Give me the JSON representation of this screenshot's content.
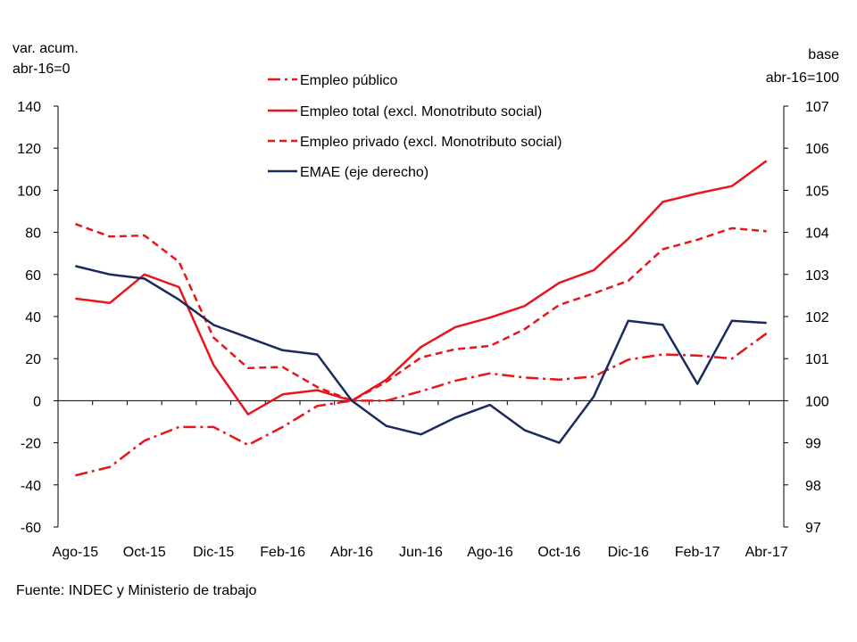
{
  "chart_data": {
    "type": "line",
    "left_axis_label": [
      "var. acum.",
      "abr-16=0"
    ],
    "right_axis_label": [
      "base",
      "abr-16=100"
    ],
    "categories": [
      "Ago-15",
      "Sep-15",
      "Oct-15",
      "Nov-15",
      "Dic-15",
      "Ene-16",
      "Feb-16",
      "Mar-16",
      "Abr-16",
      "May-16",
      "Jun-16",
      "Jul-16",
      "Ago-16",
      "Sep-16",
      "Oct-16",
      "Nov-16",
      "Dic-16",
      "Ene-17",
      "Feb-17",
      "Mar-17",
      "Abr-17"
    ],
    "tick_labels": [
      "Ago-15",
      "Oct-15",
      "Dic-15",
      "Feb-16",
      "Abr-16",
      "Jun-16",
      "Ago-16",
      "Oct-16",
      "Dic-16",
      "Feb-17",
      "Abr-17"
    ],
    "ylim_left": [
      -60,
      140
    ],
    "yticks_left": [
      -60,
      -40,
      -20,
      0,
      20,
      40,
      60,
      80,
      100,
      120,
      140
    ],
    "ylim_right": [
      97,
      107
    ],
    "yticks_right": [
      97,
      98,
      99,
      100,
      101,
      102,
      103,
      104,
      105,
      106,
      107
    ],
    "series": [
      {
        "name": "Empleo público",
        "axis": "left",
        "color": "#e8151b",
        "style": "dashdot",
        "values": [
          -35.5,
          -31.5,
          -19,
          -12.5,
          -12.5,
          -21,
          -12.5,
          -2.5,
          0,
          0,
          4.5,
          9.5,
          13,
          11,
          10,
          11.5,
          19.5,
          22,
          21.5,
          20,
          32
        ]
      },
      {
        "name": "Empleo total (excl. Monotributo social)",
        "axis": "left",
        "color": "#e8151b",
        "style": "solid",
        "values": [
          48.5,
          46.5,
          60,
          54,
          17,
          -6.5,
          3,
          5,
          0,
          10,
          25.5,
          35,
          39.5,
          45,
          56,
          62,
          77,
          94.5,
          98.5,
          102,
          114
        ]
      },
      {
        "name": "Empleo privado (excl. Monotributo social)",
        "axis": "left",
        "color": "#e8151b",
        "style": "dashed",
        "values": [
          84,
          78,
          78.5,
          66,
          30,
          15.5,
          16,
          6.5,
          0,
          9,
          20.5,
          24.5,
          26,
          34,
          45.5,
          51,
          57,
          72,
          76.5,
          82,
          80.5
        ]
      },
      {
        "name": "EMAE (eje derecho)",
        "axis": "right",
        "color": "#1a2a5e",
        "style": "solid",
        "values": [
          103.2,
          103.0,
          102.9,
          102.4,
          101.8,
          101.5,
          101.2,
          101.1,
          100,
          99.4,
          99.2,
          99.6,
          99.9,
          99.3,
          99.0,
          100.1,
          101.9,
          101.8,
          100.4,
          101.9,
          101.85
        ]
      }
    ]
  },
  "source": "Fuente: INDEC y Ministerio de trabajo"
}
